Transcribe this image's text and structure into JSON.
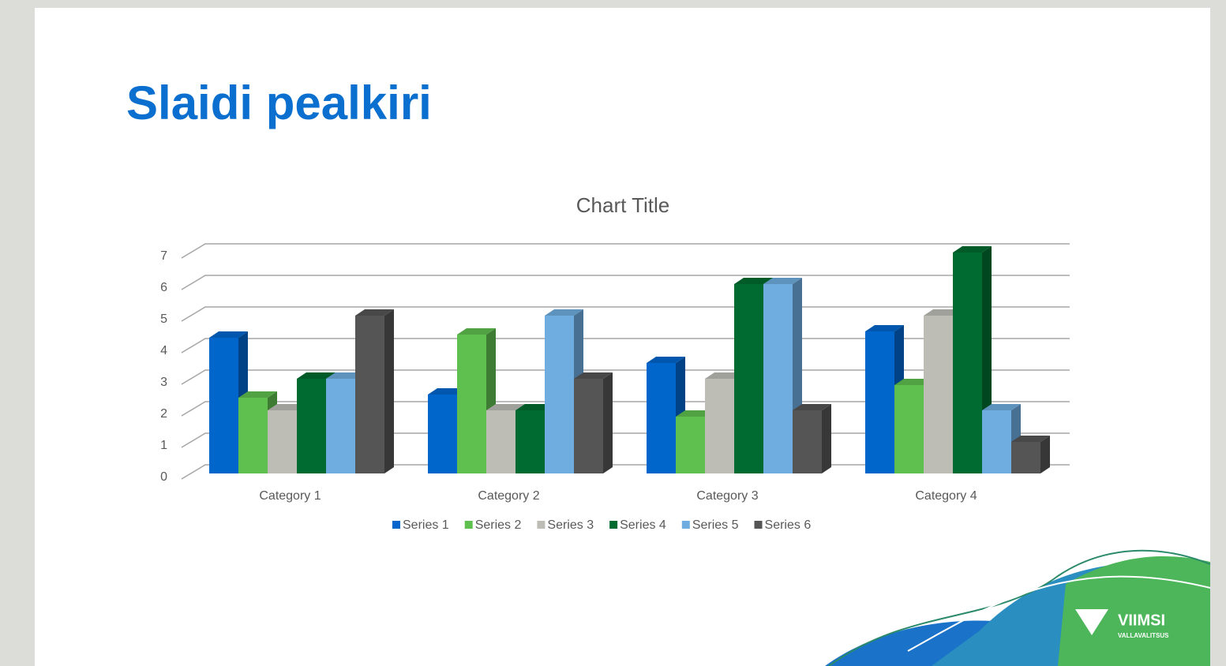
{
  "slide": {
    "title": "Slaidi pealkiri",
    "logo_name": "VIIMSI",
    "logo_sub": "VALLAVALITSUS"
  },
  "chart_data": {
    "type": "bar3d",
    "title": "Chart Title",
    "categories": [
      "Category 1",
      "Category 2",
      "Category 3",
      "Category 4"
    ],
    "series": [
      {
        "name": "Series 1",
        "color": "#0066cc",
        "values": [
          4.3,
          2.5,
          3.5,
          4.5
        ]
      },
      {
        "name": "Series 2",
        "color": "#5fbf4f",
        "values": [
          2.4,
          4.4,
          1.8,
          2.8
        ]
      },
      {
        "name": "Series 3",
        "color": "#bdbdb6",
        "values": [
          2,
          2,
          3,
          5
        ]
      },
      {
        "name": "Series 4",
        "color": "#006b30",
        "values": [
          3,
          2,
          6,
          7
        ]
      },
      {
        "name": "Series 5",
        "color": "#6fade0",
        "values": [
          3,
          5,
          6,
          2
        ]
      },
      {
        "name": "Series 6",
        "color": "#555555",
        "values": [
          5,
          3,
          2,
          1
        ]
      }
    ],
    "ylim": [
      0,
      7
    ],
    "yticks": [
      0,
      1,
      2,
      3,
      4,
      5,
      6,
      7
    ],
    "grid": true,
    "legend": "bottom"
  }
}
